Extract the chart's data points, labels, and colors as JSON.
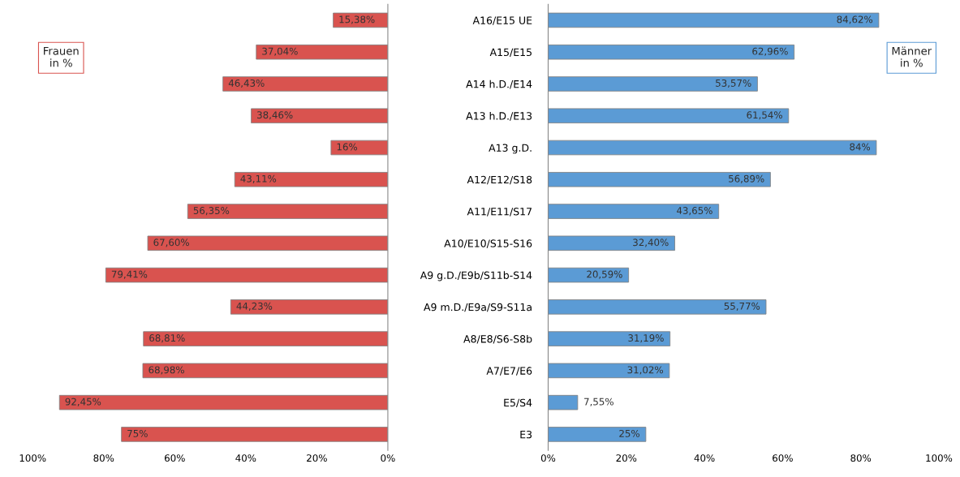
{
  "chart_data": [
    {
      "type": "bar",
      "orientation": "horizontal",
      "tick_labels": "x",
      "color": "#d9534f",
      "categories": [
        null,
        null,
        null,
        null,
        null,
        null,
        null,
        null,
        null,
        null,
        null,
        null,
        null,
        null
      ],
      "values": [
        15.38,
        37.04,
        46.43,
        38.46,
        16,
        43.11,
        56.35,
        67.6,
        79.41,
        44.23,
        68.81,
        68.98,
        92.45,
        75
      ],
      "value_labels": [
        "15,38%",
        "37,04%",
        "46,43%",
        "38,46%",
        "16%",
        "43,11%",
        "56,35%",
        "67,60%",
        "79,41%",
        "44,23%",
        "68,81%",
        "68,98%",
        "92,45%",
        "75%"
      ],
      "xlim": [
        100,
        0
      ],
      "xticks": [
        {
          "value": 100,
          "label": "100%"
        },
        {
          "value": 80,
          "label": "80%"
        },
        {
          "value": 60,
          "label": "60%"
        },
        {
          "value": 40,
          "label": "40%"
        },
        {
          "value": 20,
          "label": "20%"
        },
        {
          "value": 0,
          "label": "0%"
        }
      ],
      "annotations": [
        "Frauen\nin %"
      ]
    },
    {
      "type": "bar",
      "orientation": "horizontal",
      "color": "#5b9bd5",
      "categories": [
        "A16/E15 UE",
        "A15/E15",
        "A14 h.D./E14",
        "A13 h.D./E13",
        "A13 g.D.",
        "A12/E12/S18",
        "A11/E11/S17",
        "A10/E10/S15-S16",
        "A9 g.D./E9b/S11b-S14",
        "A9 m.D./E9a/S9-S11a",
        "A8/E8/S6-S8b",
        "A7/E7/E6",
        "E5/S4",
        "E3"
      ],
      "values": [
        84.62,
        62.96,
        53.57,
        61.54,
        84,
        56.89,
        43.65,
        32.4,
        20.59,
        55.77,
        31.19,
        31.02,
        7.55,
        25
      ],
      "value_labels": [
        "84,62%",
        "62,96%",
        "53,57%",
        "61,54%",
        "84%",
        "56,89%",
        "43,65%",
        "32,40%",
        "20,59%",
        "55,77%",
        "31,19%",
        "31,02%",
        "7,55%",
        "25%"
      ],
      "xlim": [
        0,
        100
      ],
      "xticks": [
        {
          "value": 0,
          "label": "0%"
        },
        {
          "value": 20,
          "label": "20%"
        },
        {
          "value": 40,
          "label": "40%"
        },
        {
          "value": 60,
          "label": "60%"
        },
        {
          "value": 80,
          "label": "80%"
        },
        {
          "value": 100,
          "label": "100%"
        }
      ],
      "annotations": [
        "Männer\nin %"
      ]
    }
  ]
}
